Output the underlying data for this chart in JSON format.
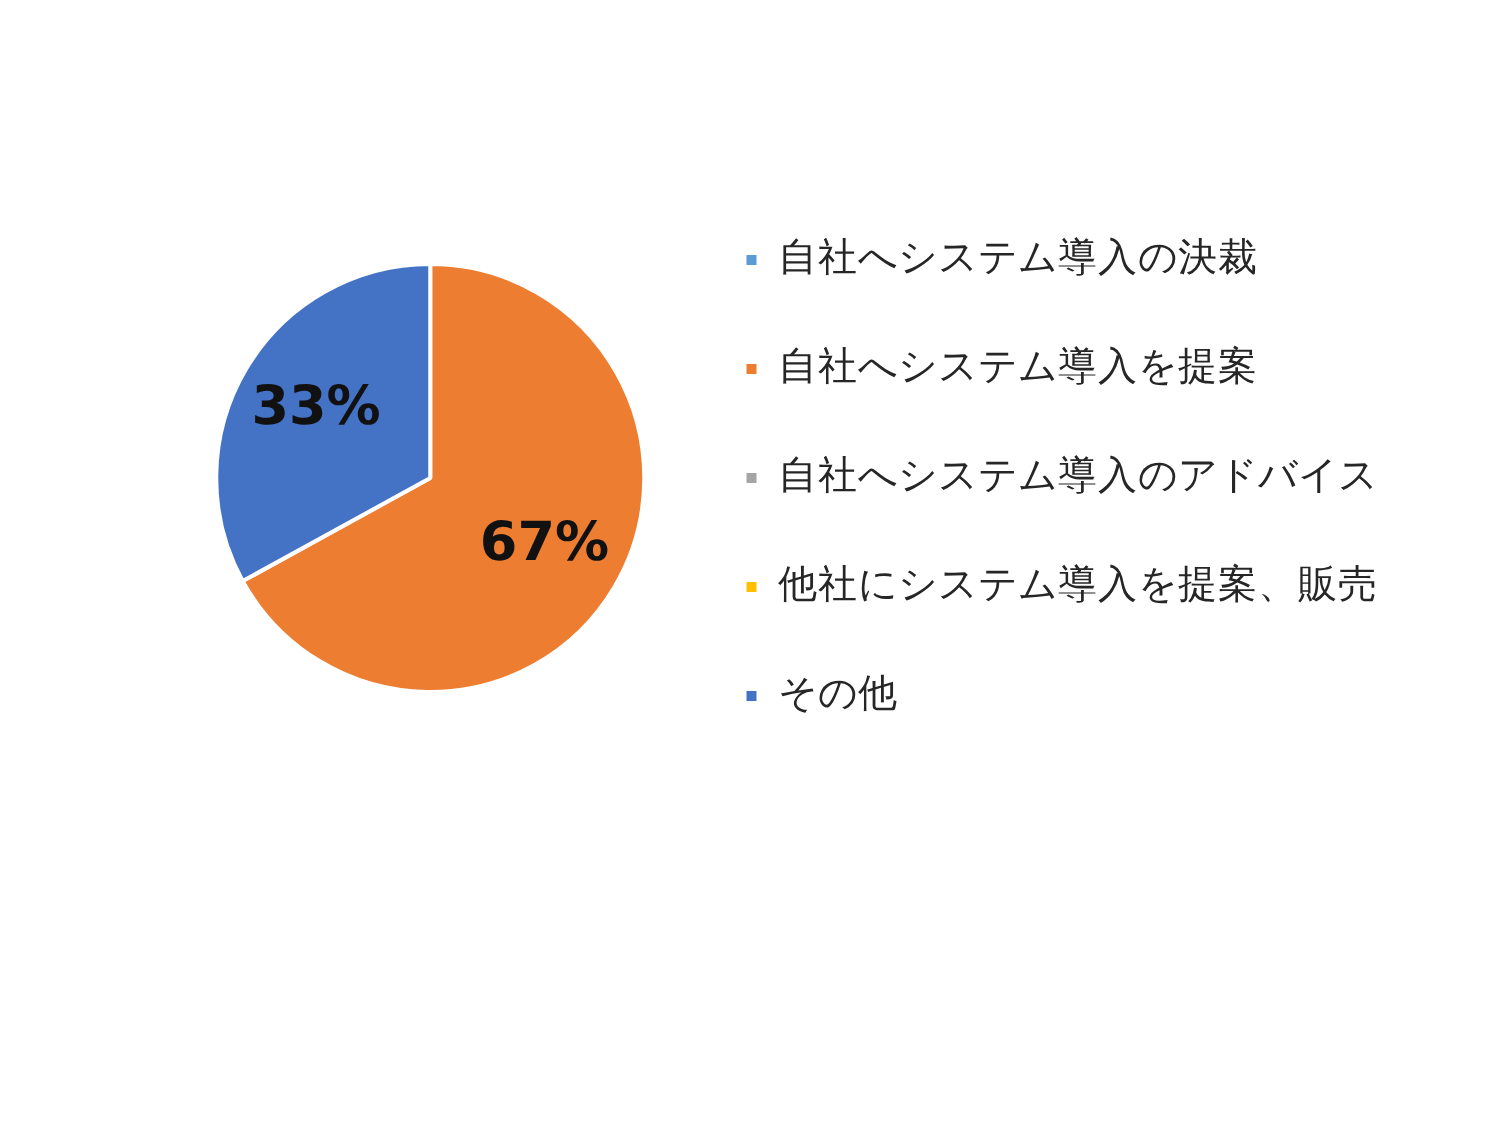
{
  "chart_data": {
    "type": "pie",
    "categories": [
      "自社へシステム導入の決裁",
      "自社へシステム導入を提案",
      "自社へシステム導入のアドバイス",
      "他社にシステム導入を提案、販売",
      "その他"
    ],
    "values": [
      0,
      67,
      0,
      0,
      33
    ],
    "colors": [
      "#5b9bd5",
      "#ed7d31",
      "#a5a5a5",
      "#ffc000",
      "#4472c4"
    ],
    "value_labels": [
      null,
      "67%",
      null,
      null,
      "33%"
    ],
    "legend": "right"
  }
}
